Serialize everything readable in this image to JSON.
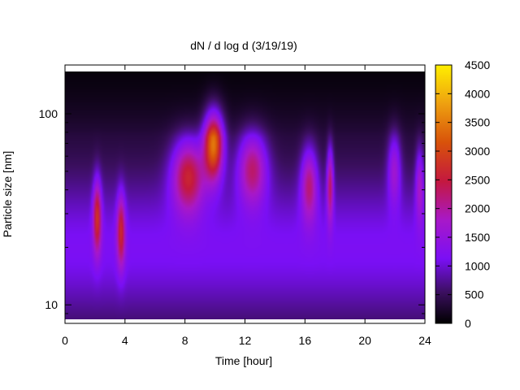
{
  "chart_data": {
    "type": "heatmap",
    "title": "dN / d log d (3/19/19)",
    "xlabel": "Time [hour]",
    "ylabel": "Particle size [nm]",
    "xlim": [
      0,
      24
    ],
    "ylim": [
      8,
      180
    ],
    "yscale": "log",
    "x_ticks": [
      0,
      4,
      8,
      12,
      16,
      20,
      24
    ],
    "x_tick_labels": [
      "0",
      "4",
      "8",
      "12",
      "16",
      "20",
      "24"
    ],
    "y_ticks": [
      10,
      100
    ],
    "y_tick_labels": [
      "10",
      "100"
    ],
    "colorbar": {
      "range": [
        0,
        4500
      ],
      "ticks": [
        0,
        500,
        1000,
        1500,
        2000,
        2500,
        3000,
        3500,
        4000,
        4500
      ],
      "tick_labels": [
        "0",
        "500",
        "1000",
        "1500",
        "2000",
        "2500",
        "3000",
        "3500",
        "4000",
        "4500"
      ],
      "palette": "gnuplot-heat (black-purple-red-orange-yellow)"
    },
    "features": [
      {
        "time_h": 2.1,
        "size_nm": 30,
        "peak": 2700,
        "duration_h": 0.5
      },
      {
        "time_h": 3.7,
        "size_nm": 25,
        "peak": 2500,
        "duration_h": 0.5
      },
      {
        "time_h": 8.2,
        "size_nm": 50,
        "peak": 2900,
        "duration_h": 2.0
      },
      {
        "time_h": 9.9,
        "size_nm": 75,
        "peak": 3900,
        "duration_h": 1.2
      },
      {
        "time_h": 12.5,
        "size_nm": 55,
        "peak": 2600,
        "duration_h": 1.8
      },
      {
        "time_h": 16.3,
        "size_nm": 45,
        "peak": 2400,
        "duration_h": 1.0
      },
      {
        "time_h": 17.7,
        "size_nm": 45,
        "peak": 2500,
        "duration_h": 0.4
      },
      {
        "time_h": 22.0,
        "size_nm": 55,
        "peak": 2000,
        "duration_h": 0.8
      },
      {
        "time_h": 23.7,
        "size_nm": 45,
        "peak": 2000,
        "duration_h": 0.5
      }
    ],
    "background_level": 900,
    "grid": false,
    "legend": "colorbar-right"
  }
}
